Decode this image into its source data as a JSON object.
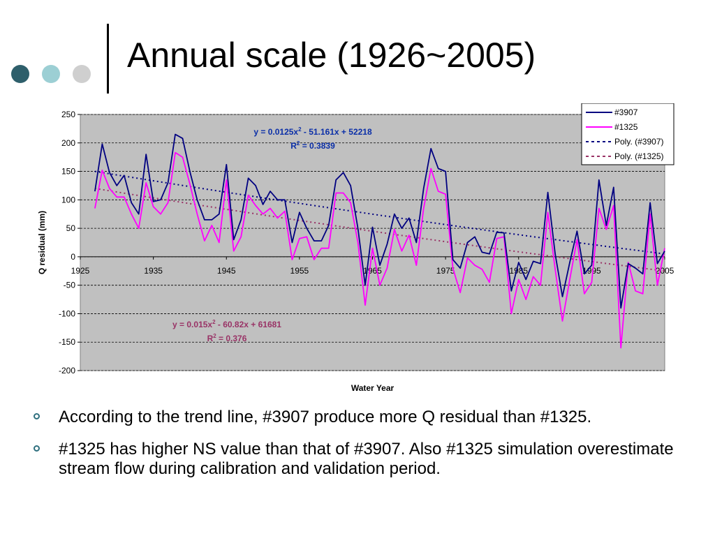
{
  "slide": {
    "title": "Annual scale (1926~2005)",
    "decor_colors": [
      "#2e5f6b",
      "#9ccfd4",
      "#cfcfcf"
    ],
    "bullets": [
      "According to the trend line, #3907 produce more Q residual than #1325.",
      "#1325 has higher NS value than that of #3907. Also #1325 simulation overestimate stream flow during calibration and validation period."
    ]
  },
  "chart_data": {
    "type": "line",
    "xlabel": "Water Year",
    "ylabel": "Q residual (mm)",
    "xlim": [
      1925,
      2005
    ],
    "ylim": [
      -200,
      250
    ],
    "xticks": [
      1925,
      1935,
      1945,
      1955,
      1965,
      1975,
      1985,
      1995,
      2005
    ],
    "yticks": [
      250,
      200,
      150,
      100,
      50,
      0,
      -50,
      -100,
      -150,
      -200
    ],
    "grid": true,
    "plot_background": "#c0c0c0",
    "legend_position": "top-right",
    "x": [
      1927,
      1928,
      1929,
      1930,
      1931,
      1932,
      1933,
      1934,
      1935,
      1936,
      1937,
      1938,
      1939,
      1940,
      1941,
      1942,
      1943,
      1944,
      1945,
      1946,
      1947,
      1948,
      1949,
      1950,
      1951,
      1952,
      1953,
      1954,
      1955,
      1956,
      1957,
      1958,
      1959,
      1960,
      1961,
      1962,
      1963,
      1964,
      1965,
      1966,
      1967,
      1968,
      1969,
      1970,
      1971,
      1972,
      1973,
      1974,
      1975,
      1976,
      1977,
      1978,
      1979,
      1980,
      1981,
      1982,
      1983,
      1984,
      1985,
      1986,
      1987,
      1988,
      1989,
      1990,
      1991,
      1992,
      1993,
      1994,
      1995,
      1996,
      1997,
      1998,
      1999,
      2000,
      2001,
      2002,
      2003,
      2004,
      2005
    ],
    "series": [
      {
        "name": "#3907",
        "color": "#000080",
        "style": "solid",
        "values": [
          115,
          198,
          148,
          125,
          143,
          95,
          75,
          180,
          97,
          100,
          130,
          215,
          208,
          150,
          100,
          65,
          65,
          75,
          162,
          30,
          65,
          138,
          125,
          92,
          115,
          100,
          100,
          25,
          78,
          50,
          28,
          28,
          55,
          135,
          148,
          125,
          50,
          -50,
          52,
          -15,
          22,
          75,
          50,
          68,
          25,
          120,
          190,
          155,
          150,
          -5,
          -20,
          25,
          35,
          8,
          5,
          43,
          42,
          -60,
          -10,
          -40,
          -8,
          -12,
          113,
          5,
          -70,
          -10,
          45,
          -30,
          -15,
          135,
          55,
          122,
          -90,
          -12,
          -20,
          -30,
          95,
          -12,
          10
        ]
      },
      {
        "name": "#1325",
        "color": "#ff00ff",
        "style": "solid",
        "values": [
          85,
          152,
          120,
          105,
          105,
          75,
          50,
          130,
          88,
          75,
          95,
          183,
          175,
          128,
          75,
          28,
          55,
          25,
          135,
          10,
          35,
          108,
          90,
          75,
          85,
          68,
          80,
          -5,
          32,
          35,
          -5,
          15,
          15,
          112,
          112,
          95,
          25,
          -85,
          15,
          -50,
          -20,
          48,
          10,
          38,
          -15,
          85,
          155,
          115,
          110,
          -20,
          -63,
          -2,
          -15,
          -22,
          -45,
          32,
          35,
          -100,
          -40,
          -75,
          -35,
          -50,
          78,
          -22,
          -113,
          -40,
          30,
          -65,
          -45,
          85,
          48,
          90,
          -160,
          -10,
          -60,
          -65,
          75,
          -50,
          15
        ]
      },
      {
        "name": "Poly. (#3907)",
        "color": "#000080",
        "style": "dotted",
        "trend_of": "#3907",
        "equation": "y = 0.0125x² - 51.161x + 52218",
        "r_squared": "R² = 0.3839",
        "start_value": 150,
        "end_value": 5
      },
      {
        "name": "Poly. (#1325)",
        "color": "#993366",
        "style": "dotted",
        "trend_of": "#1325",
        "equation": "y = 0.015x² - 60.82x + 61681",
        "r_squared": "R² = 0.376",
        "start_value": 120,
        "end_value": -25
      }
    ],
    "annotations": [
      {
        "lines": [
          "y = 0.0125x",
          "2",
          " - 51.161x + 52218"
        ],
        "r2": "R",
        "r2_rest": " = 0.3839",
        "color": "#0b2fa8"
      },
      {
        "lines": [
          "y = 0.015x",
          "2",
          " - 60.82x + 61681"
        ],
        "r2": "R",
        "r2_rest": " = 0.376",
        "color": "#993366"
      }
    ]
  }
}
